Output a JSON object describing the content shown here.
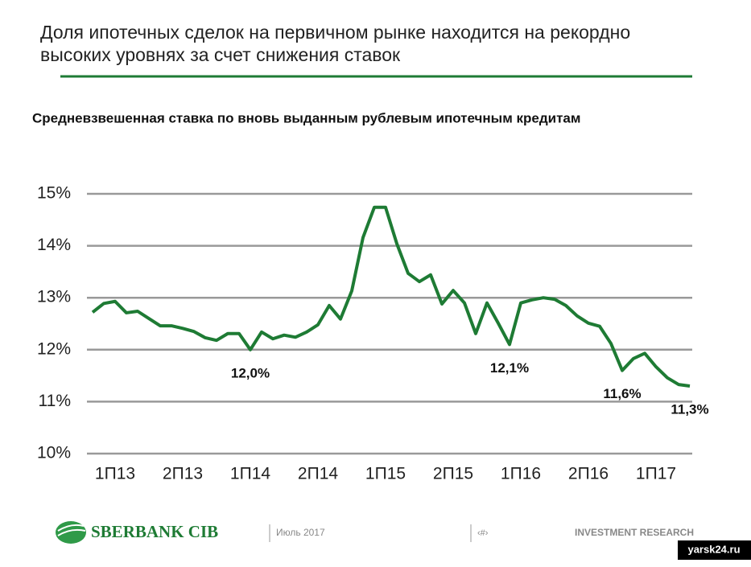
{
  "header": {
    "title_line1": "Доля ипотечных сделок на первичном рынке находится на рекордно",
    "title_line2": "высоких уровнях за счет снижения ставок"
  },
  "chart_data": {
    "type": "line",
    "title": "Средневзвешенная ставка по вновь выданным рублевым ипотечным кредитам",
    "categories": [
      null,
      null,
      "1П13",
      null,
      null,
      null,
      null,
      null,
      "2П13",
      null,
      null,
      null,
      null,
      null,
      "1П14",
      null,
      null,
      null,
      null,
      null,
      "2П14",
      null,
      null,
      null,
      null,
      null,
      "1П15",
      null,
      null,
      null,
      null,
      null,
      "2П15",
      null,
      null,
      null,
      null,
      null,
      "1П16",
      null,
      null,
      null,
      null,
      null,
      "2П16",
      null,
      null,
      null,
      null,
      null,
      "1П17",
      null,
      null,
      null
    ],
    "series": [
      {
        "name": "Средневзвешенная ставка",
        "color": "#1e7b34",
        "values": [
          12.72,
          12.89,
          12.93,
          12.71,
          12.74,
          12.6,
          12.46,
          12.46,
          12.41,
          12.35,
          12.23,
          12.18,
          12.31,
          12.31,
          12.0,
          12.34,
          12.21,
          12.28,
          12.24,
          12.34,
          12.48,
          12.85,
          12.59,
          13.13,
          14.16,
          14.74,
          14.74,
          14.04,
          13.47,
          13.31,
          13.44,
          12.88,
          13.14,
          12.9,
          12.31,
          12.9,
          12.51,
          12.1,
          12.9,
          12.96,
          13.0,
          12.97,
          12.85,
          12.65,
          12.51,
          12.45,
          12.12,
          11.6,
          11.83,
          11.93,
          11.67,
          11.46,
          11.33,
          11.3
        ],
        "value_labels": [
          null,
          null,
          null,
          null,
          null,
          null,
          null,
          null,
          null,
          null,
          null,
          null,
          null,
          null,
          "12,0%",
          null,
          null,
          null,
          null,
          null,
          null,
          null,
          null,
          null,
          null,
          null,
          null,
          null,
          null,
          null,
          null,
          null,
          null,
          null,
          null,
          null,
          null,
          "12,1%",
          null,
          null,
          null,
          null,
          null,
          null,
          null,
          null,
          null,
          "11,6%",
          null,
          null,
          null,
          null,
          null,
          "11,3%"
        ]
      }
    ],
    "ylim": [
      10,
      15
    ],
    "yticks": [
      {
        "value": 10,
        "label": "10%"
      },
      {
        "value": 11,
        "label": "11%"
      },
      {
        "value": 12,
        "label": "12%"
      },
      {
        "value": 13,
        "label": "13%"
      },
      {
        "value": 14,
        "label": "14%"
      },
      {
        "value": 15,
        "label": "15%"
      }
    ],
    "grid": true
  },
  "footer": {
    "logo": "SBERBANK CIB",
    "date": "Июль 2017",
    "page": "‹#›",
    "department": "INVESTMENT RESEARCH",
    "watermark": "yarsk24.ru"
  }
}
